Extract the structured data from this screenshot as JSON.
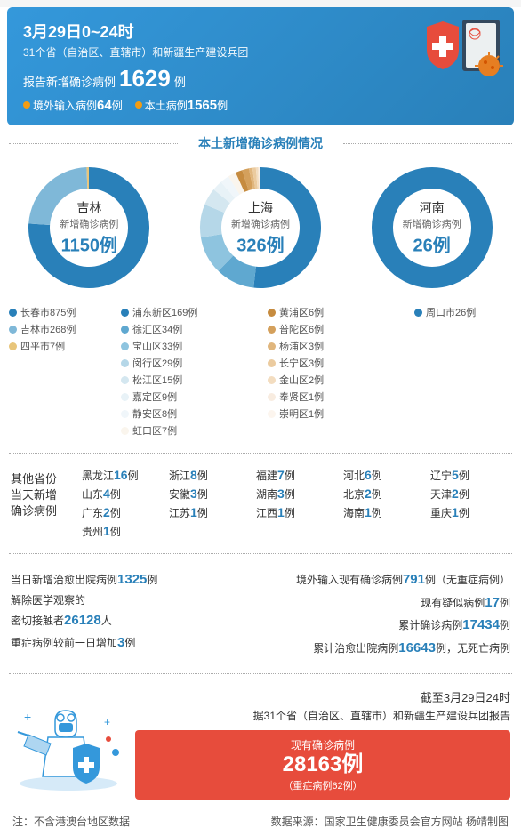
{
  "header": {
    "date": "3月29日0~24时",
    "sub": "31个省（自治区、直辖市）和新疆生产建设兵团",
    "mainLabel": "报告新增确诊病例",
    "mainCount": "1629",
    "mainUnit": "例",
    "imported": {
      "label": "境外输入病例",
      "count": "64",
      "unit": "例"
    },
    "local": {
      "label": "本土病例",
      "count": "1565",
      "unit": "例"
    }
  },
  "sectionTitle": "本土新增确诊病例情况",
  "donuts": [
    {
      "place": "吉林",
      "label": "新增确诊病例",
      "count": "1150例",
      "slices": [
        {
          "v": 875,
          "c": "#2980b9"
        },
        {
          "v": 268,
          "c": "#7fb8d8"
        },
        {
          "v": 7,
          "c": "#e8c57a"
        }
      ],
      "legend": [
        {
          "t": "长春市875例",
          "c": "#2980b9"
        },
        {
          "t": "吉林市268例",
          "c": "#7fb8d8"
        },
        {
          "t": "四平市7例",
          "c": "#e8c57a"
        }
      ]
    },
    {
      "place": "上海",
      "label": "新增确诊病例",
      "count": "326例",
      "slices": [
        {
          "v": 169,
          "c": "#2980b9"
        },
        {
          "v": 34,
          "c": "#5fa8d0"
        },
        {
          "v": 33,
          "c": "#8ec4df"
        },
        {
          "v": 29,
          "c": "#b5d7e8"
        },
        {
          "v": 15,
          "c": "#d4e7f0"
        },
        {
          "v": 9,
          "c": "#e8f2f7"
        },
        {
          "v": 8,
          "c": "#f0f6fa"
        },
        {
          "v": 7,
          "c": "#faf5ed"
        },
        {
          "v": 6,
          "c": "#c68b3f"
        },
        {
          "v": 6,
          "c": "#d4a05c"
        },
        {
          "v": 3,
          "c": "#e0b67d"
        },
        {
          "v": 3,
          "c": "#ebcb9f"
        },
        {
          "v": 2,
          "c": "#f3ddc0"
        },
        {
          "v": 1,
          "c": "#f8ece0"
        },
        {
          "v": 1,
          "c": "#fcf5ee"
        }
      ],
      "legend2": [
        [
          {
            "t": "浦东新区169例",
            "c": "#2980b9"
          },
          {
            "t": "徐汇区34例",
            "c": "#5fa8d0"
          },
          {
            "t": "宝山区33例",
            "c": "#8ec4df"
          },
          {
            "t": "闵行区29例",
            "c": "#b5d7e8"
          },
          {
            "t": "松江区15例",
            "c": "#d4e7f0"
          },
          {
            "t": "嘉定区9例",
            "c": "#e8f2f7"
          },
          {
            "t": "静安区8例",
            "c": "#f0f6fa"
          },
          {
            "t": "虹口区7例",
            "c": "#faf5ed"
          }
        ],
        [
          {
            "t": "黄浦区6例",
            "c": "#c68b3f"
          },
          {
            "t": "普陀区6例",
            "c": "#d4a05c"
          },
          {
            "t": "杨浦区3例",
            "c": "#e0b67d"
          },
          {
            "t": "长宁区3例",
            "c": "#ebcb9f"
          },
          {
            "t": "金山区2例",
            "c": "#f3ddc0"
          },
          {
            "t": "奉贤区1例",
            "c": "#f8ece0"
          },
          {
            "t": "崇明区1例",
            "c": "#fcf5ee"
          }
        ]
      ]
    },
    {
      "place": "河南",
      "label": "新增确诊病例",
      "count": "26例",
      "slices": [
        {
          "v": 26,
          "c": "#2980b9"
        }
      ],
      "legend": [
        {
          "t": "周口市26例",
          "c": "#2980b9"
        }
      ]
    }
  ],
  "otherLabel": "其他省份\n当天新增\n确诊病例",
  "other": [
    {
      "p": "黑龙江",
      "n": "16"
    },
    {
      "p": "浙江",
      "n": "8"
    },
    {
      "p": "福建",
      "n": "7"
    },
    {
      "p": "河北",
      "n": "6"
    },
    {
      "p": "辽宁",
      "n": "5"
    },
    {
      "p": "山东",
      "n": "4"
    },
    {
      "p": "安徽",
      "n": "3"
    },
    {
      "p": "湖南",
      "n": "3"
    },
    {
      "p": "北京",
      "n": "2"
    },
    {
      "p": "天津",
      "n": "2"
    },
    {
      "p": "广东",
      "n": "2"
    },
    {
      "p": "江苏",
      "n": "1"
    },
    {
      "p": "江西",
      "n": "1"
    },
    {
      "p": "海南",
      "n": "1"
    },
    {
      "p": "重庆",
      "n": "1"
    },
    {
      "p": "贵州",
      "n": "1"
    }
  ],
  "statsLeft": [
    {
      "pre": "当日新增治愈出院病例",
      "n": "1325",
      "post": "例"
    },
    {
      "pre": "解除医学观察的",
      "n": "",
      "post": ""
    },
    {
      "pre": "密切接触者",
      "n": "26128",
      "post": "人"
    },
    {
      "pre": "重症病例较前一日增加",
      "n": "3",
      "post": "例"
    }
  ],
  "statsRight": [
    {
      "pre": "境外输入现有确诊病例",
      "n": "791",
      "post": "例（无重症病例）"
    },
    {
      "pre": "现有疑似病例",
      "n": "17",
      "post": "例"
    },
    {
      "pre": "累计确诊病例",
      "n": "17434",
      "post": "例"
    },
    {
      "pre": "累计治愈出院病例",
      "n": "16643",
      "post": "例，无死亡病例"
    }
  ],
  "bottom": {
    "date": "截至3月29日24时",
    "sub": "据31个省（自治区、直辖市）和新疆生产建设兵团报告",
    "boxLabel": "现有确诊病例",
    "boxCount": "28163例",
    "boxSub": "（重症病例62例）"
  },
  "footer": {
    "left": "注：不含港澳台地区数据",
    "right": "数据来源：国家卫生健康委员会官方网站  杨靖制图"
  }
}
